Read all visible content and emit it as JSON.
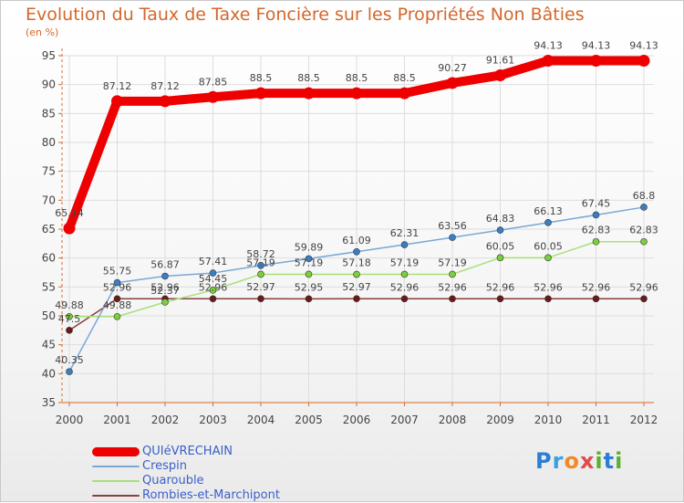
{
  "title": "Evolution du Taux de Taxe Foncière sur les Propriétés Non Bâties",
  "unit_label": "(en %)",
  "logo": {
    "text": "Proxiti"
  },
  "colors": {
    "title": "#d4672a",
    "axis": "#d86a2a",
    "grid": "#dddddd",
    "label": "#444444",
    "legend_text": "#3a5fc8"
  },
  "chart_data": {
    "type": "line",
    "title": "Evolution du Taux de Taxe Foncière sur les Propriétés Non Bâties",
    "ylabel": "(en %)",
    "xlabel": "",
    "x": [
      "2000",
      "2001",
      "2002",
      "2003",
      "2004",
      "2005",
      "2006",
      "2007",
      "2008",
      "2009",
      "2010",
      "2011",
      "2012"
    ],
    "ylim": [
      35,
      95
    ],
    "yticks": [
      35,
      40,
      45,
      50,
      55,
      60,
      65,
      70,
      75,
      80,
      85,
      90,
      95
    ],
    "grid": true,
    "legend_position": "bottom-left",
    "series": [
      {
        "name": "QUIéVRECHAIN",
        "color": "#ee0000",
        "marker_color": "#ee0000",
        "values": [
          65.14,
          87.12,
          87.12,
          87.85,
          88.5,
          88.5,
          88.5,
          88.5,
          90.27,
          91.61,
          94.13,
          94.13,
          94.13
        ],
        "labels": [
          "65.14",
          "87.12",
          "87.12",
          "87.85",
          "88.5",
          "88.5",
          "88.5",
          "88.5",
          "90.27",
          "91.61",
          "94.13",
          "94.13",
          "94.13"
        ]
      },
      {
        "name": "Crespin",
        "color": "#7aa7d6",
        "marker_color": "#3a7ec8",
        "values": [
          40.35,
          55.75,
          56.87,
          57.41,
          58.72,
          59.89,
          61.09,
          62.31,
          63.56,
          64.83,
          66.13,
          67.45,
          68.8
        ],
        "labels": [
          "40.35",
          "55.75",
          "56.87",
          "57.41",
          "58.72",
          "59.89",
          "61.09",
          "62.31",
          "63.56",
          "64.83",
          "66.13",
          "67.45",
          "68.8"
        ]
      },
      {
        "name": "Quarouble",
        "color": "#a8e07a",
        "marker_color": "#7ccf3a",
        "values": [
          49.88,
          49.88,
          52.37,
          54.45,
          57.19,
          57.19,
          57.18,
          57.19,
          57.19,
          60.05,
          60.05,
          62.83,
          62.83
        ],
        "labels": [
          "49.88",
          "49.88",
          "52.37",
          "54.45",
          "57.19",
          "57.19",
          "57.18",
          "57.19",
          "57.19",
          "60.05",
          "60.05",
          "62.83",
          "62.83"
        ]
      },
      {
        "name": "Rombies-et-Marchipont",
        "color": "#8a4040",
        "marker_color": "#6a1a1a",
        "values": [
          47.5,
          52.96,
          52.96,
          52.96,
          52.97,
          52.95,
          52.97,
          52.96,
          52.96,
          52.96,
          52.96,
          52.96,
          52.96
        ],
        "labels": [
          "47.5",
          "52.96",
          "52.96",
          "52.96",
          "52.97",
          "52.95",
          "52.97",
          "52.96",
          "52.96",
          "52.96",
          "52.96",
          "52.96",
          "52.96"
        ]
      }
    ]
  },
  "legend": [
    {
      "label": "QUIéVRECHAIN",
      "color": "#ee0000"
    },
    {
      "label": "Crespin",
      "color": "#7aa7d6"
    },
    {
      "label": "Quarouble",
      "color": "#a8e07a"
    },
    {
      "label": "Rombies-et-Marchipont",
      "color": "#8a4040"
    }
  ]
}
